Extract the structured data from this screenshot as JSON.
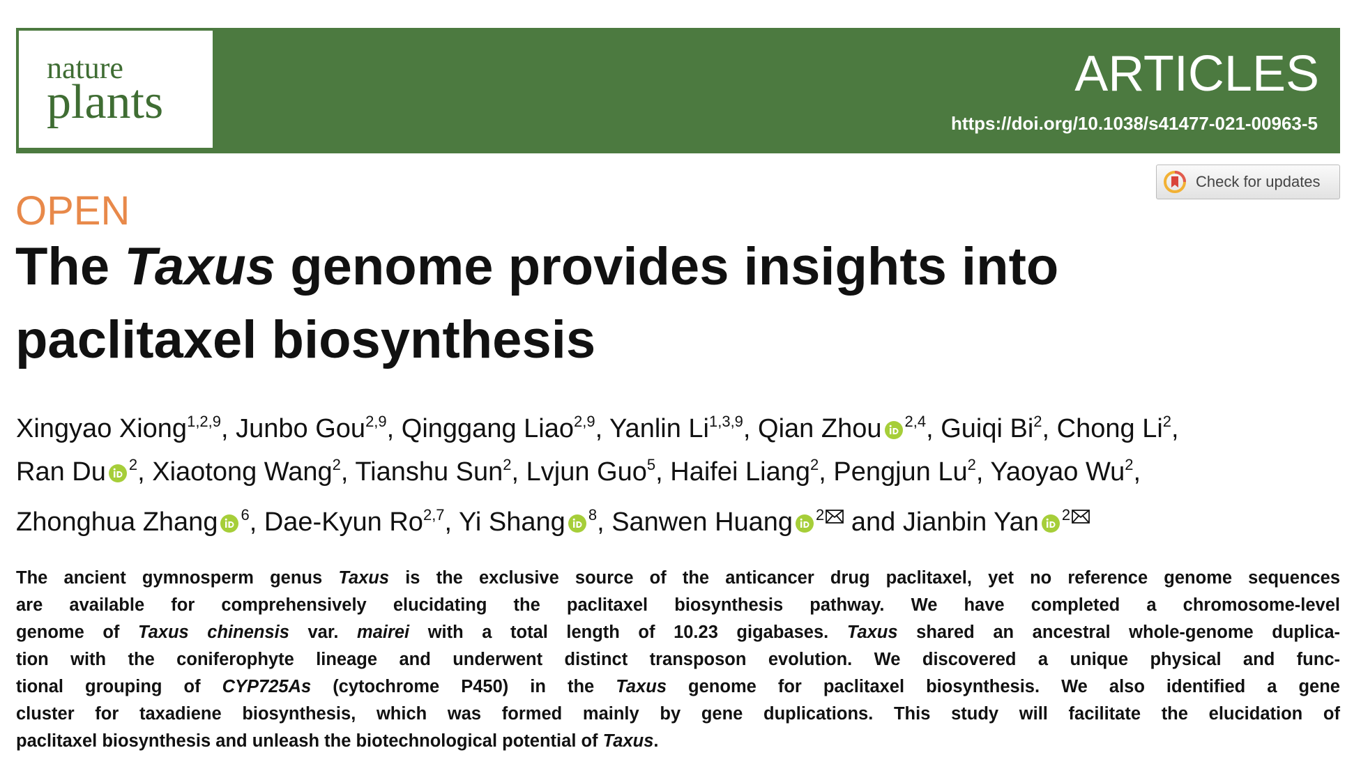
{
  "header": {
    "logo_top": "nature",
    "logo_bottom": "plants",
    "section": "ARTICLES",
    "doi": "https://doi.org/10.1038/s41477-021-00963-5"
  },
  "updates_button": "Check for updates",
  "access": "OPEN",
  "title": {
    "lines": [
      [
        {
          "text": "The "
        },
        {
          "text": "Taxus",
          "italic": true
        },
        {
          "text": " genome provides insights into"
        }
      ],
      [
        {
          "text": "paclitaxel biosynthesis"
        }
      ]
    ]
  },
  "authors": {
    "lines": [
      [
        {
          "name": "Xingyao Xiong",
          "sup": "1,2,9",
          "orcid": false,
          "mail": false,
          "sep": ", "
        },
        {
          "name": "Junbo Gou",
          "sup": "2,9",
          "orcid": false,
          "mail": false,
          "sep": ", "
        },
        {
          "name": "Qinggang Liao",
          "sup": "2,9",
          "orcid": false,
          "mail": false,
          "sep": ", "
        },
        {
          "name": "Yanlin Li",
          "sup": "1,3,9",
          "orcid": false,
          "mail": false,
          "sep": ", "
        },
        {
          "name": "Qian Zhou",
          "sup": "2,4",
          "orcid": true,
          "mail": false,
          "sep": ", "
        },
        {
          "name": "Guiqi Bi",
          "sup": "2",
          "orcid": false,
          "mail": false,
          "sep": ", "
        },
        {
          "name": "Chong Li",
          "sup": "2",
          "orcid": false,
          "mail": false,
          "sep": ","
        }
      ],
      [
        {
          "name": "Ran Du",
          "sup": "2",
          "orcid": true,
          "mail": false,
          "sep": ", "
        },
        {
          "name": "Xiaotong Wang",
          "sup": "2",
          "orcid": false,
          "mail": false,
          "sep": ", "
        },
        {
          "name": "Tianshu Sun",
          "sup": "2",
          "orcid": false,
          "mail": false,
          "sep": ", "
        },
        {
          "name": "Lvjun Guo",
          "sup": "5",
          "orcid": false,
          "mail": false,
          "sep": ", "
        },
        {
          "name": "Haifei Liang",
          "sup": "2",
          "orcid": false,
          "mail": false,
          "sep": ", "
        },
        {
          "name": "Pengjun Lu",
          "sup": "2",
          "orcid": false,
          "mail": false,
          "sep": ", "
        },
        {
          "name": "Yaoyao Wu",
          "sup": "2",
          "orcid": false,
          "mail": false,
          "sep": ","
        }
      ],
      [
        {
          "name": "Zhonghua Zhang",
          "sup": "6",
          "orcid": true,
          "mail": false,
          "sep": ", "
        },
        {
          "name": "Dae-Kyun Ro",
          "sup": "2,7",
          "orcid": false,
          "mail": false,
          "sep": ", "
        },
        {
          "name": "Yi Shang",
          "sup": "8",
          "orcid": true,
          "mail": false,
          "sep": ", "
        },
        {
          "name": "Sanwen Huang",
          "sup": "2",
          "orcid": true,
          "mail": true,
          "sep": " and "
        },
        {
          "name": "Jianbin Yan",
          "sup": "2",
          "orcid": true,
          "mail": true
        }
      ]
    ]
  },
  "abstract": {
    "lines": [
      [
        {
          "text": "The ancient gymnosperm genus "
        },
        {
          "text": "Taxus",
          "italic": true
        },
        {
          "text": " is the exclusive source of the anticancer drug paclitaxel, yet no reference genome sequences"
        }
      ],
      [
        {
          "text": "are available for comprehensively elucidating the paclitaxel biosynthesis pathway. We have completed a chromosome-level"
        }
      ],
      [
        {
          "text": "genome of "
        },
        {
          "text": "Taxus chinensis",
          "italic": true
        },
        {
          "text": " var. "
        },
        {
          "text": "mairei",
          "italic": true
        },
        {
          "text": " with a total length of 10.23 gigabases. "
        },
        {
          "text": "Taxus",
          "italic": true
        },
        {
          "text": " shared an ancestral whole-genome duplica-"
        }
      ],
      [
        {
          "text": "tion with the coniferophyte lineage and underwent distinct transposon evolution. We discovered a unique physical and func-"
        }
      ],
      [
        {
          "text": "tional grouping of "
        },
        {
          "text": "CYP725As",
          "italic": true
        },
        {
          "text": " (cytochrome P450) in the "
        },
        {
          "text": "Taxus",
          "italic": true
        },
        {
          "text": " genome for paclitaxel biosynthesis. We also identified a gene"
        }
      ],
      [
        {
          "text": "cluster for taxadiene biosynthesis, which was formed mainly by gene duplications. This study will facilitate the elucidation of"
        }
      ],
      [
        {
          "text": "paclitaxel biosynthesis and unleash the biotechnological potential of "
        },
        {
          "text": "Taxus",
          "italic": true
        },
        {
          "text": "."
        }
      ]
    ]
  }
}
